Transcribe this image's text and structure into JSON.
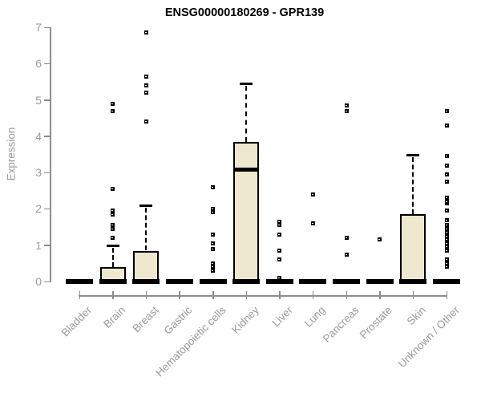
{
  "chart_data": {
    "type": "boxplot",
    "title": "ENSG00000180269 - GPR139",
    "ylabel": "Expression",
    "xlabel": "",
    "ylim": [
      0,
      7
    ],
    "yticks": [
      0,
      1,
      2,
      3,
      4,
      5,
      6,
      7
    ],
    "grid": false,
    "legend": false,
    "categories": [
      "Bladder",
      "Brain",
      "Breast",
      "Gastric",
      "Hematopoietic cells",
      "Kidney",
      "Liver",
      "Lung",
      "Pancreas",
      "Prostate",
      "Skin",
      "Unknown / Other"
    ],
    "series": [
      {
        "name": "Bladder",
        "low": 0,
        "q1": 0,
        "median": 0,
        "q3": 0,
        "high": 0,
        "outliers": []
      },
      {
        "name": "Brain",
        "low": 0,
        "q1": 0,
        "median": 0,
        "q3": 0.4,
        "high": 1.0,
        "outliers": [
          1.2,
          1.45,
          1.55,
          1.85,
          1.95,
          2.55,
          4.7,
          4.9
        ]
      },
      {
        "name": "Breast",
        "low": 0,
        "q1": 0,
        "median": 0,
        "q3": 0.85,
        "high": 2.1,
        "outliers": [
          4.4,
          5.2,
          5.4,
          5.65,
          6.85
        ]
      },
      {
        "name": "Gastric",
        "low": 0,
        "q1": 0,
        "median": 0,
        "q3": 0,
        "high": 0,
        "outliers": []
      },
      {
        "name": "Hematopoietic cells",
        "low": 0,
        "q1": 0,
        "median": 0,
        "q3": 0,
        "high": 0,
        "outliers": [
          0.3,
          0.4,
          0.5,
          0.9,
          1.05,
          1.3,
          1.9,
          2.0,
          2.6
        ]
      },
      {
        "name": "Kidney",
        "low": 0,
        "q1": 0,
        "median": 3.1,
        "q3": 3.85,
        "high": 5.45,
        "outliers": []
      },
      {
        "name": "Liver",
        "low": 0,
        "q1": 0,
        "median": 0,
        "q3": 0,
        "high": 0,
        "outliers": [
          0.1,
          0.6,
          0.85,
          1.3,
          1.55,
          1.65
        ]
      },
      {
        "name": "Lung",
        "low": 0,
        "q1": 0,
        "median": 0,
        "q3": 0,
        "high": 0,
        "outliers": [
          1.6,
          2.4
        ]
      },
      {
        "name": "Pancreas",
        "low": 0,
        "q1": 0,
        "median": 0,
        "q3": 0,
        "high": 0,
        "outliers": [
          0.75,
          1.2,
          4.7,
          4.85
        ]
      },
      {
        "name": "Prostate",
        "low": 0,
        "q1": 0,
        "median": 0,
        "q3": 0,
        "high": 0,
        "outliers": [
          1.15
        ]
      },
      {
        "name": "Skin",
        "low": 0,
        "q1": 0,
        "median": 0,
        "q3": 1.85,
        "high": 3.5,
        "outliers": []
      },
      {
        "name": "Unknown / Other",
        "low": 0,
        "q1": 0,
        "median": 0,
        "q3": 0,
        "high": 0,
        "outliers": [
          0.4,
          0.5,
          0.6,
          0.85,
          0.95,
          1.05,
          1.15,
          1.25,
          1.35,
          1.45,
          1.55,
          1.7,
          1.95,
          2.15,
          2.2,
          2.3,
          2.75,
          2.95,
          3.2,
          3.45,
          4.3,
          4.7
        ]
      }
    ],
    "colors": {
      "box_fill": "#EDE8CE",
      "box_border": "#000000",
      "median": "#000000",
      "whisker": "#000000",
      "outlier": "#000000",
      "axis": "#8C8C8C",
      "tick_label": "#9A9A9A",
      "axis_title": "#9A9A9A",
      "title": "#000000",
      "background": "#FFFFFF"
    }
  }
}
